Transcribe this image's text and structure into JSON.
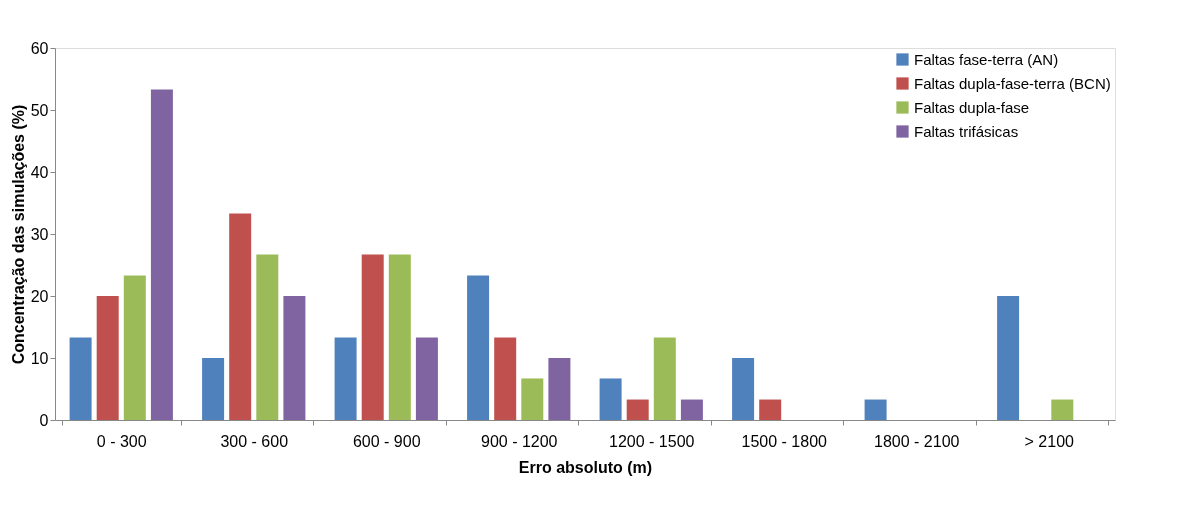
{
  "chart_data": {
    "type": "bar",
    "xlabel": "Erro absoluto (m)",
    "ylabel": "Concentração das simulações (%)",
    "categories": [
      "0 - 300",
      "300 - 600",
      "600 - 900",
      "900 - 1200",
      "1200 - 1500",
      "1500 - 1800",
      "1800 - 2100",
      "> 2100"
    ],
    "series": [
      {
        "name": "Faltas fase-terra (AN)",
        "color": "#4f81bd",
        "values": [
          13.3,
          10,
          13.3,
          23.3,
          6.7,
          10,
          3.3,
          20
        ]
      },
      {
        "name": "Faltas dupla-fase-terra (BCN)",
        "color": "#c0504d",
        "values": [
          20,
          33.3,
          26.7,
          13.3,
          3.3,
          3.3,
          0,
          0
        ]
      },
      {
        "name": "Faltas dupla-fase",
        "color": "#9bbb59",
        "values": [
          23.3,
          26.7,
          26.7,
          6.7,
          13.3,
          0,
          0,
          3.3
        ]
      },
      {
        "name": "Faltas trifásicas",
        "color": "#8064a2",
        "values": [
          53.3,
          20,
          13.3,
          10,
          3.3,
          0,
          0,
          0
        ]
      }
    ],
    "ylim": [
      0,
      60
    ],
    "yticks": [
      0,
      10,
      20,
      30,
      40,
      50,
      60
    ],
    "grid": false,
    "legend": "top right"
  }
}
